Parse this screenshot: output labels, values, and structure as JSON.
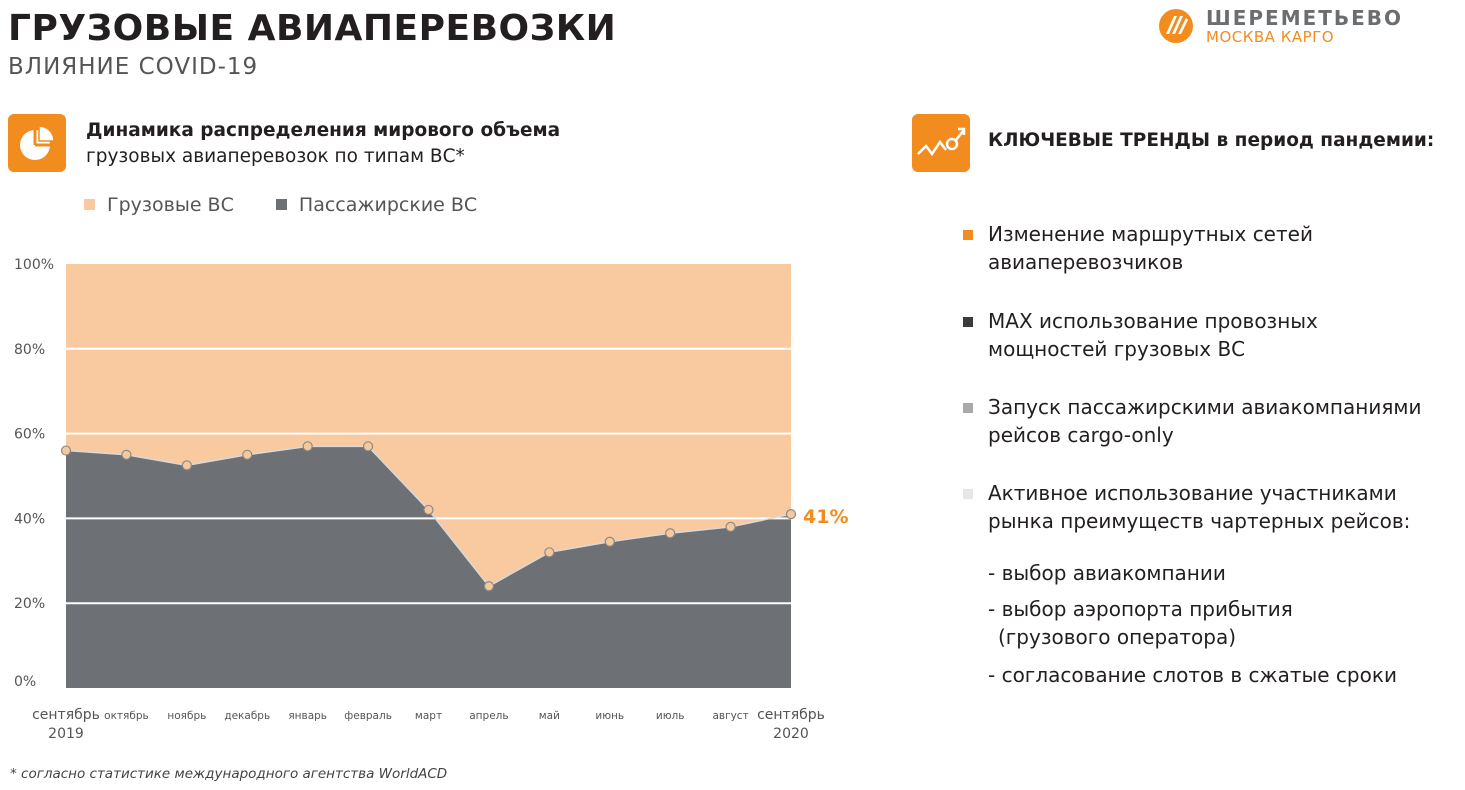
{
  "header": {
    "title": "ГРУЗОВЫЕ АВИАПЕРЕВОЗКИ",
    "subtitle": "ВЛИЯНИЕ COVID-19",
    "logo_name": "ШЕРЕМЕТЬЕВО",
    "logo_sub": "МОСКВА КАРГО"
  },
  "chart_section": {
    "heading_line1": "Динамика распределения мирового объема",
    "heading_line2": "грузовых авиаперевозок по типам ВС*",
    "icon": "pie-chart-icon"
  },
  "chart_data": {
    "type": "area",
    "stacked": true,
    "categories": [
      "сентябрь 2019",
      "октябрь",
      "ноябрь",
      "декабрь",
      "январь",
      "февраль",
      "март",
      "апрель",
      "май",
      "июнь",
      "июль",
      "август",
      "сентябрь 2020"
    ],
    "x_tick_labels": [
      {
        "line1": "сентябрь",
        "line2": "2019"
      },
      {
        "line1": "октябрь",
        "line2": ""
      },
      {
        "line1": "ноябрь",
        "line2": ""
      },
      {
        "line1": "декабрь",
        "line2": ""
      },
      {
        "line1": "январь",
        "line2": ""
      },
      {
        "line1": "февраль",
        "line2": ""
      },
      {
        "line1": "март",
        "line2": ""
      },
      {
        "line1": "апрель",
        "line2": ""
      },
      {
        "line1": "май",
        "line2": ""
      },
      {
        "line1": "июнь",
        "line2": ""
      },
      {
        "line1": "июль",
        "line2": ""
      },
      {
        "line1": "август",
        "line2": ""
      },
      {
        "line1": "сентябрь",
        "line2": "2020"
      }
    ],
    "series": [
      {
        "name": "Пассажирские ВС",
        "values": [
          56,
          55,
          52.5,
          55,
          57,
          57,
          42,
          24,
          32,
          34.5,
          36.5,
          38,
          41
        ],
        "color": "#6d7175"
      },
      {
        "name": "Грузовые ВС",
        "values": [
          44,
          45,
          47.5,
          45,
          43,
          43,
          58,
          76,
          68,
          65.5,
          63.5,
          62,
          59
        ],
        "color": "#f9ca9f"
      }
    ],
    "ylim": [
      0,
      100
    ],
    "y_ticks": [
      "0%",
      "20%",
      "40%",
      "60%",
      "80%",
      "100%"
    ],
    "y_tick_values": [
      0,
      20,
      40,
      60,
      80,
      100
    ],
    "gridlines": true,
    "end_label": "41%",
    "end_label_color": "#f28c1e",
    "legend_position": "top-left"
  },
  "trends_section": {
    "heading": "КЛЮЧЕВЫЕ ТРЕНДЫ в период пандемии:",
    "icon": "trend-up-icon",
    "items": [
      {
        "line1": "Изменение маршрутных сетей",
        "line2": "авиаперевозчиков",
        "bullet_color": "#f28c1e"
      },
      {
        "line1": "MAX использование провозных",
        "line2": "мощностей грузовых ВС",
        "bullet_color": "#3a3a3a"
      },
      {
        "line1": "Запуск пассажирскими авиакомпаниями",
        "line2": "рейсов cargo-only",
        "bullet_color": "#a8a8a8"
      },
      {
        "line1": "Активное использование участниками",
        "line2": "рынка преимуществ чартерных рейсов:",
        "bullet_color": "#e6e6e6"
      }
    ],
    "sub_items": [
      {
        "line1": "- выбор авиакомпании",
        "line2": ""
      },
      {
        "line1": "- выбор аэропорта прибытия",
        "line2": "(грузового оператора)"
      },
      {
        "line1": "- согласование слотов в сжатые сроки",
        "line2": ""
      }
    ]
  },
  "footnote": "* согласно статистике международного агентства WorldACD",
  "colors": {
    "accent": "#f28c1e",
    "cargo_area": "#f9ca9f",
    "passenger_area": "#6d7175"
  }
}
